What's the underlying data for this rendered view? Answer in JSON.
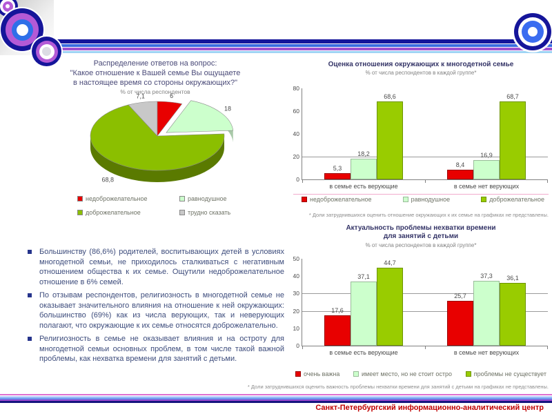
{
  "slide": {
    "footer": "Санкт-Петербургский информационно-аналитический центр",
    "palette": {
      "navy": "#15159a",
      "blue": "#3a6ce0",
      "purple": "#a050d0",
      "light_blue": "#9fd4f4",
      "pink": "#df6fd0",
      "footer_red": "#c00000",
      "title_navy": "#333366",
      "red_series": "#e80000",
      "pale_green_series": "#ccffcc",
      "green_series": "#99cc00",
      "gray_series": "#c8c8c8"
    }
  },
  "bullets": [
    "Большинству (86,6%) родителей, воспитывающих детей в условиях многодетной семьи, не приходилось сталкиваться с негативным отношением общества к их семье. Ощутили недоброжелательное отношение в 6% семей.",
    "По отзывам респондентов, религиозность в многодетной семье не оказывает значительного влияния на отношение к ней окружающих: большинство (69%) как из числа верующих, так и неверующих полагают, что окружающие к их семье относятся доброжелательно.",
    "Религиозность в семье не оказывает влияния и на остроту для многодетной семьи основных проблем, в том числе такой важной проблемы, как нехватка времени для занятий с детьми."
  ],
  "chart_data": [
    {
      "id": "attitude-pie",
      "type": "pie",
      "title": "Распределение ответов на вопрос:\n\"Какое отношение к Вашей семье Вы ощущаете\nв настоящее время со стороны окружающих?\"",
      "subtitle": "% от числа респондентов",
      "legend_position": "bottom",
      "slices": [
        {
          "label": "недоброжелательное",
          "value": 6,
          "display": "6",
          "color": "#e80000",
          "side": "#8f0000"
        },
        {
          "label": "равнодушное",
          "value": 18,
          "display": "18",
          "color": "#ccffcc",
          "side": "#a9c9a9",
          "exploded": true
        },
        {
          "label": "доброжелательное",
          "value": 68.8,
          "display": "68,8",
          "color": "#8bbf00",
          "side": "#5a7a00"
        },
        {
          "label": "трудно сказать",
          "value": 7.1,
          "display": "7,1",
          "color": "#c8c8c8",
          "side": "#909090"
        }
      ]
    },
    {
      "id": "attitude-by-faith",
      "type": "bar",
      "title": "Оценка отношения окружающих к многодетной семье",
      "subtitle": "% от числа респондентов в каждой группе*",
      "categories": [
        "в семье есть верующие",
        "в семье нет верующих"
      ],
      "series": [
        {
          "name": "недоброжелательное",
          "color": "#e80000",
          "border": "#990000",
          "values": [
            5.3,
            8.4
          ],
          "labels": [
            "5,3",
            "8,4"
          ]
        },
        {
          "name": "равнодушное",
          "color": "#ccffcc",
          "border": "#99bb99",
          "values": [
            18.2,
            16.9
          ],
          "labels": [
            "18,2",
            "16,9"
          ]
        },
        {
          "name": "доброжелательное",
          "color": "#99cc00",
          "border": "#6d9400",
          "values": [
            68.6,
            68.7
          ],
          "labels": [
            "68,6",
            "68,7"
          ]
        }
      ],
      "ylim": [
        0,
        80
      ],
      "yticks": [
        0,
        20,
        40,
        60,
        80
      ],
      "gridlines": [
        20
      ],
      "grid": true,
      "legend_position": "bottom",
      "note": "* Доли затруднившихся оценить отношение окружающих к их семье на графиках не представлены."
    },
    {
      "id": "time-shortage-problem",
      "type": "bar",
      "title": "Актуальность проблемы нехватки времени\nдля занятий с детьми",
      "subtitle": "% от числа респондентов в каждой группе*",
      "categories": [
        "в семье есть верующие",
        "в семье нет верующих"
      ],
      "series": [
        {
          "name": "очень важна",
          "color": "#e80000",
          "border": "#990000",
          "values": [
            17.6,
            25.7
          ],
          "labels": [
            "17,6",
            "25,7"
          ]
        },
        {
          "name": "имеет место, но не стоит остро",
          "color": "#ccffcc",
          "border": "#99bb99",
          "values": [
            37.1,
            37.3
          ],
          "labels": [
            "37,1",
            "37,3"
          ]
        },
        {
          "name": "проблемы не существует",
          "color": "#99cc00",
          "border": "#6d9400",
          "values": [
            44.7,
            36.1
          ],
          "labels": [
            "44,7",
            "36,1"
          ]
        }
      ],
      "ylim": [
        0,
        50
      ],
      "yticks": [
        0,
        10,
        20,
        30,
        40,
        50
      ],
      "gridlines": [
        20,
        30
      ],
      "grid": true,
      "legend_position": "bottom",
      "note": "* Доли затруднившихся оценить важность проблемы нехватки времени для занятий с детьми на графиках не представлены."
    }
  ]
}
